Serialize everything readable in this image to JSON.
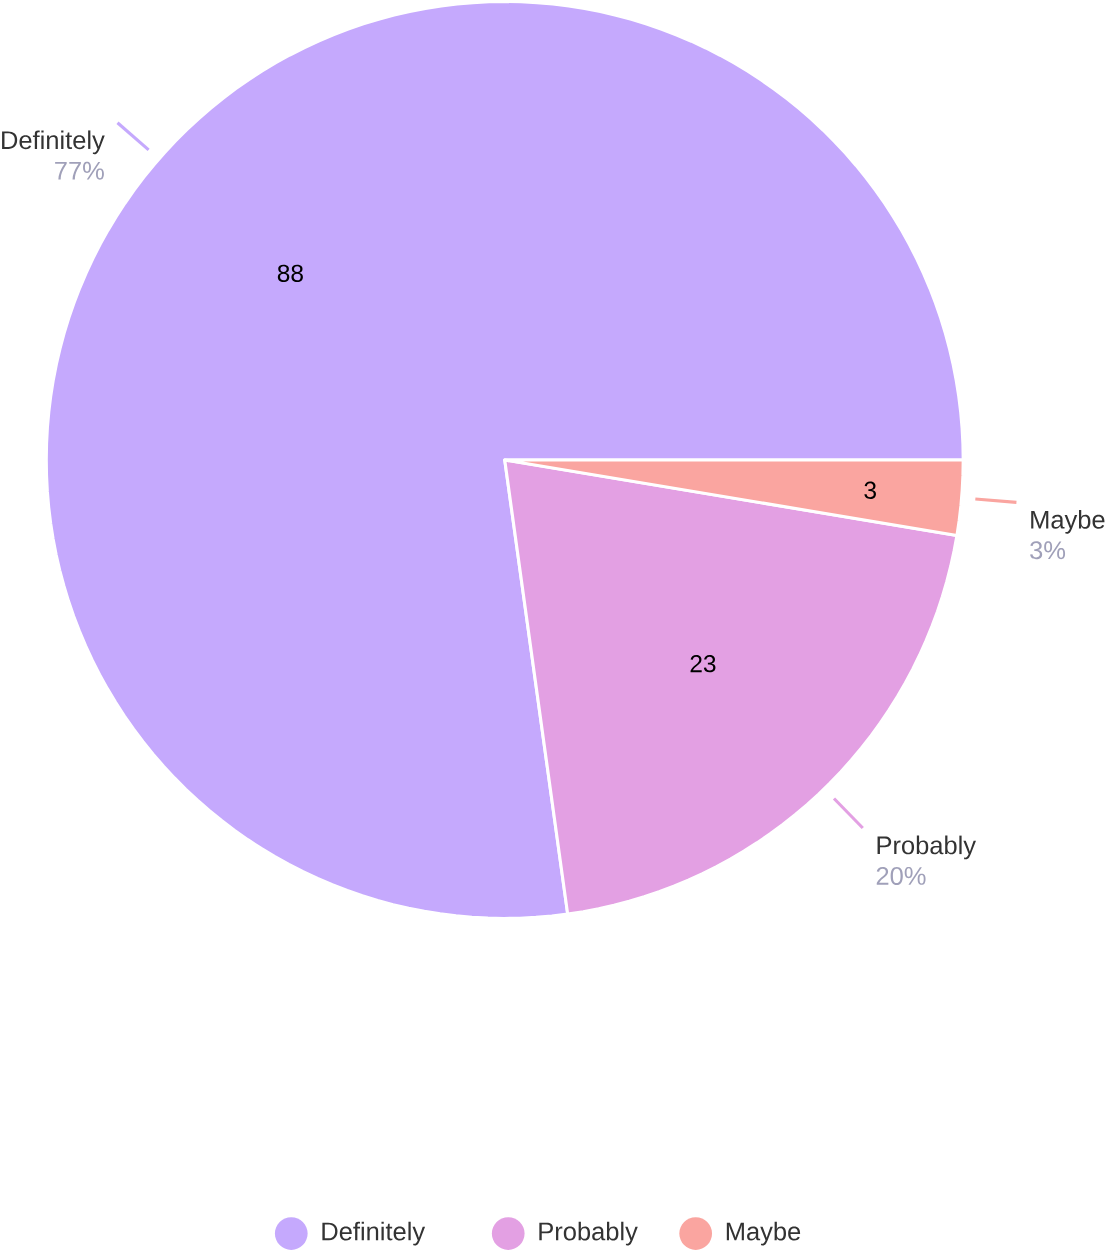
{
  "chart_data": {
    "type": "pie",
    "categories": [
      "Definitely",
      "Probably",
      "Maybe"
    ],
    "values": [
      88,
      23,
      3
    ],
    "colors": [
      "#c5a9fd",
      "#e3a0e3",
      "#faa5a0"
    ],
    "value_labels": [
      "88",
      "23",
      "3"
    ],
    "annotations": [
      {
        "text": "77%",
        "x": "Definitely"
      },
      {
        "text": "20%",
        "x": "Probably"
      },
      {
        "text": "3%",
        "x": "Maybe"
      }
    ],
    "legend": "bottom"
  }
}
